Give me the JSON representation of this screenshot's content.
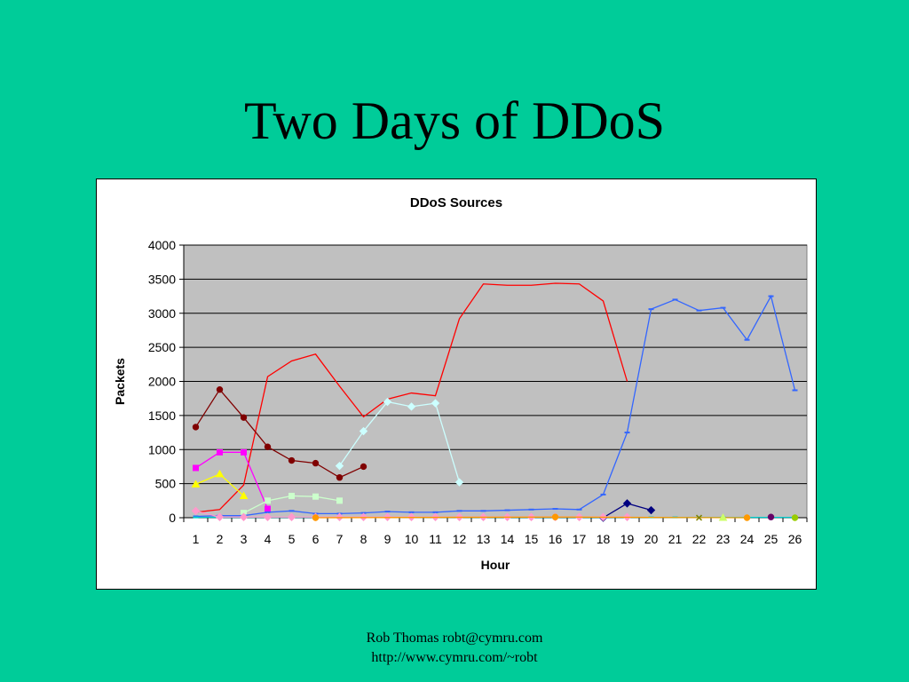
{
  "slide": {
    "title": "Two Days of DDoS",
    "footer_line1": "Rob Thomas robt@cymru.com",
    "footer_line2": "http://www.cymru.com/~robt"
  },
  "chart_data": {
    "type": "line",
    "title": "DDoS Sources",
    "xlabel": "Hour",
    "ylabel": "Packets",
    "categories": [
      1,
      2,
      3,
      4,
      5,
      6,
      7,
      8,
      9,
      10,
      11,
      12,
      13,
      14,
      15,
      16,
      17,
      18,
      19,
      20,
      21,
      22,
      23,
      24,
      25,
      26
    ],
    "ylim": [
      0,
      4000
    ],
    "yticks": [
      0,
      500,
      1000,
      1500,
      2000,
      2500,
      3000,
      3500,
      4000
    ],
    "grid": true,
    "plot_background": "#c0c0c0",
    "series": [
      {
        "color": "#ff0000",
        "marker": "none",
        "x": [
          1,
          2,
          3,
          4,
          5,
          6,
          7,
          8,
          9,
          10,
          11,
          12,
          13,
          14,
          15,
          16,
          17,
          18,
          19
        ],
        "values": [
          80,
          120,
          480,
          2070,
          2300,
          2400,
          1930,
          1480,
          1740,
          1830,
          1790,
          2920,
          3430,
          3410,
          3410,
          3440,
          3430,
          3180,
          2000
        ]
      },
      {
        "color": "#800000",
        "marker": "circle",
        "x": [
          1,
          2,
          3,
          4,
          5,
          6,
          7,
          8
        ],
        "values": [
          1330,
          1880,
          1470,
          1040,
          840,
          800,
          590,
          750
        ]
      },
      {
        "color": "#ff00ff",
        "marker": "square",
        "x": [
          1,
          2,
          3,
          4
        ],
        "values": [
          730,
          960,
          960,
          130
        ]
      },
      {
        "color": "#ffff00",
        "marker": "triangle",
        "x": [
          1,
          2,
          3
        ],
        "values": [
          490,
          640,
          320
        ]
      },
      {
        "color": "#ccffcc",
        "marker": "square",
        "x": [
          3,
          4,
          5,
          6,
          7
        ],
        "values": [
          70,
          250,
          320,
          310,
          250
        ]
      },
      {
        "color": "#ccffff",
        "marker": "diamond",
        "x": [
          7,
          8,
          9,
          10,
          11,
          12
        ],
        "values": [
          760,
          1270,
          1700,
          1630,
          1680,
          520
        ]
      },
      {
        "color": "#3366ff",
        "marker": "dash",
        "x": [
          1,
          2,
          3,
          4,
          5,
          6,
          7,
          8,
          9,
          10,
          11,
          12,
          13,
          14,
          15,
          16,
          17,
          18,
          19,
          20,
          21,
          22,
          23,
          24,
          25,
          26
        ],
        "values": [
          20,
          30,
          30,
          80,
          100,
          60,
          60,
          70,
          90,
          80,
          80,
          100,
          100,
          110,
          120,
          130,
          120,
          340,
          1250,
          3060,
          3200,
          3040,
          3080,
          2610,
          3250,
          1870
        ]
      },
      {
        "color": "#000080",
        "marker": "diamond",
        "x": [
          18,
          19,
          20
        ],
        "values": [
          0,
          210,
          110
        ]
      },
      {
        "color": "#00cccc",
        "marker": "dash",
        "x": [
          1,
          2,
          3,
          4,
          5,
          6,
          7,
          8,
          9,
          10,
          11,
          12,
          13,
          14,
          15,
          16,
          17,
          18,
          19,
          20,
          21,
          22,
          23,
          24,
          25,
          26
        ],
        "values": [
          5,
          5,
          5,
          5,
          5,
          5,
          5,
          5,
          5,
          5,
          5,
          5,
          5,
          5,
          5,
          5,
          5,
          5,
          5,
          5,
          5,
          5,
          5,
          5,
          5,
          5
        ]
      },
      {
        "color": "#ff99cc",
        "marker": "diamond",
        "x": [
          1,
          2,
          3,
          4,
          5,
          6,
          7,
          8,
          9,
          10,
          11,
          12,
          13,
          14,
          15,
          16,
          17,
          18,
          19
        ],
        "values": [
          100,
          10,
          10,
          10,
          10,
          10,
          10,
          10,
          10,
          10,
          10,
          10,
          10,
          10,
          10,
          10,
          10,
          10,
          10
        ]
      },
      {
        "color": "#ff9900",
        "marker": "circle",
        "x": [
          6,
          16,
          24
        ],
        "values": [
          0,
          10,
          0
        ]
      },
      {
        "color": "#808000",
        "marker": "x",
        "x": [
          22
        ],
        "values": [
          0
        ]
      },
      {
        "color": "#ccff66",
        "marker": "triangle",
        "x": [
          23
        ],
        "values": [
          0
        ]
      },
      {
        "color": "#660066",
        "marker": "circle",
        "x": [
          25
        ],
        "values": [
          10
        ]
      },
      {
        "color": "#99cc00",
        "marker": "circle",
        "x": [
          26
        ],
        "values": [
          0
        ]
      }
    ]
  }
}
